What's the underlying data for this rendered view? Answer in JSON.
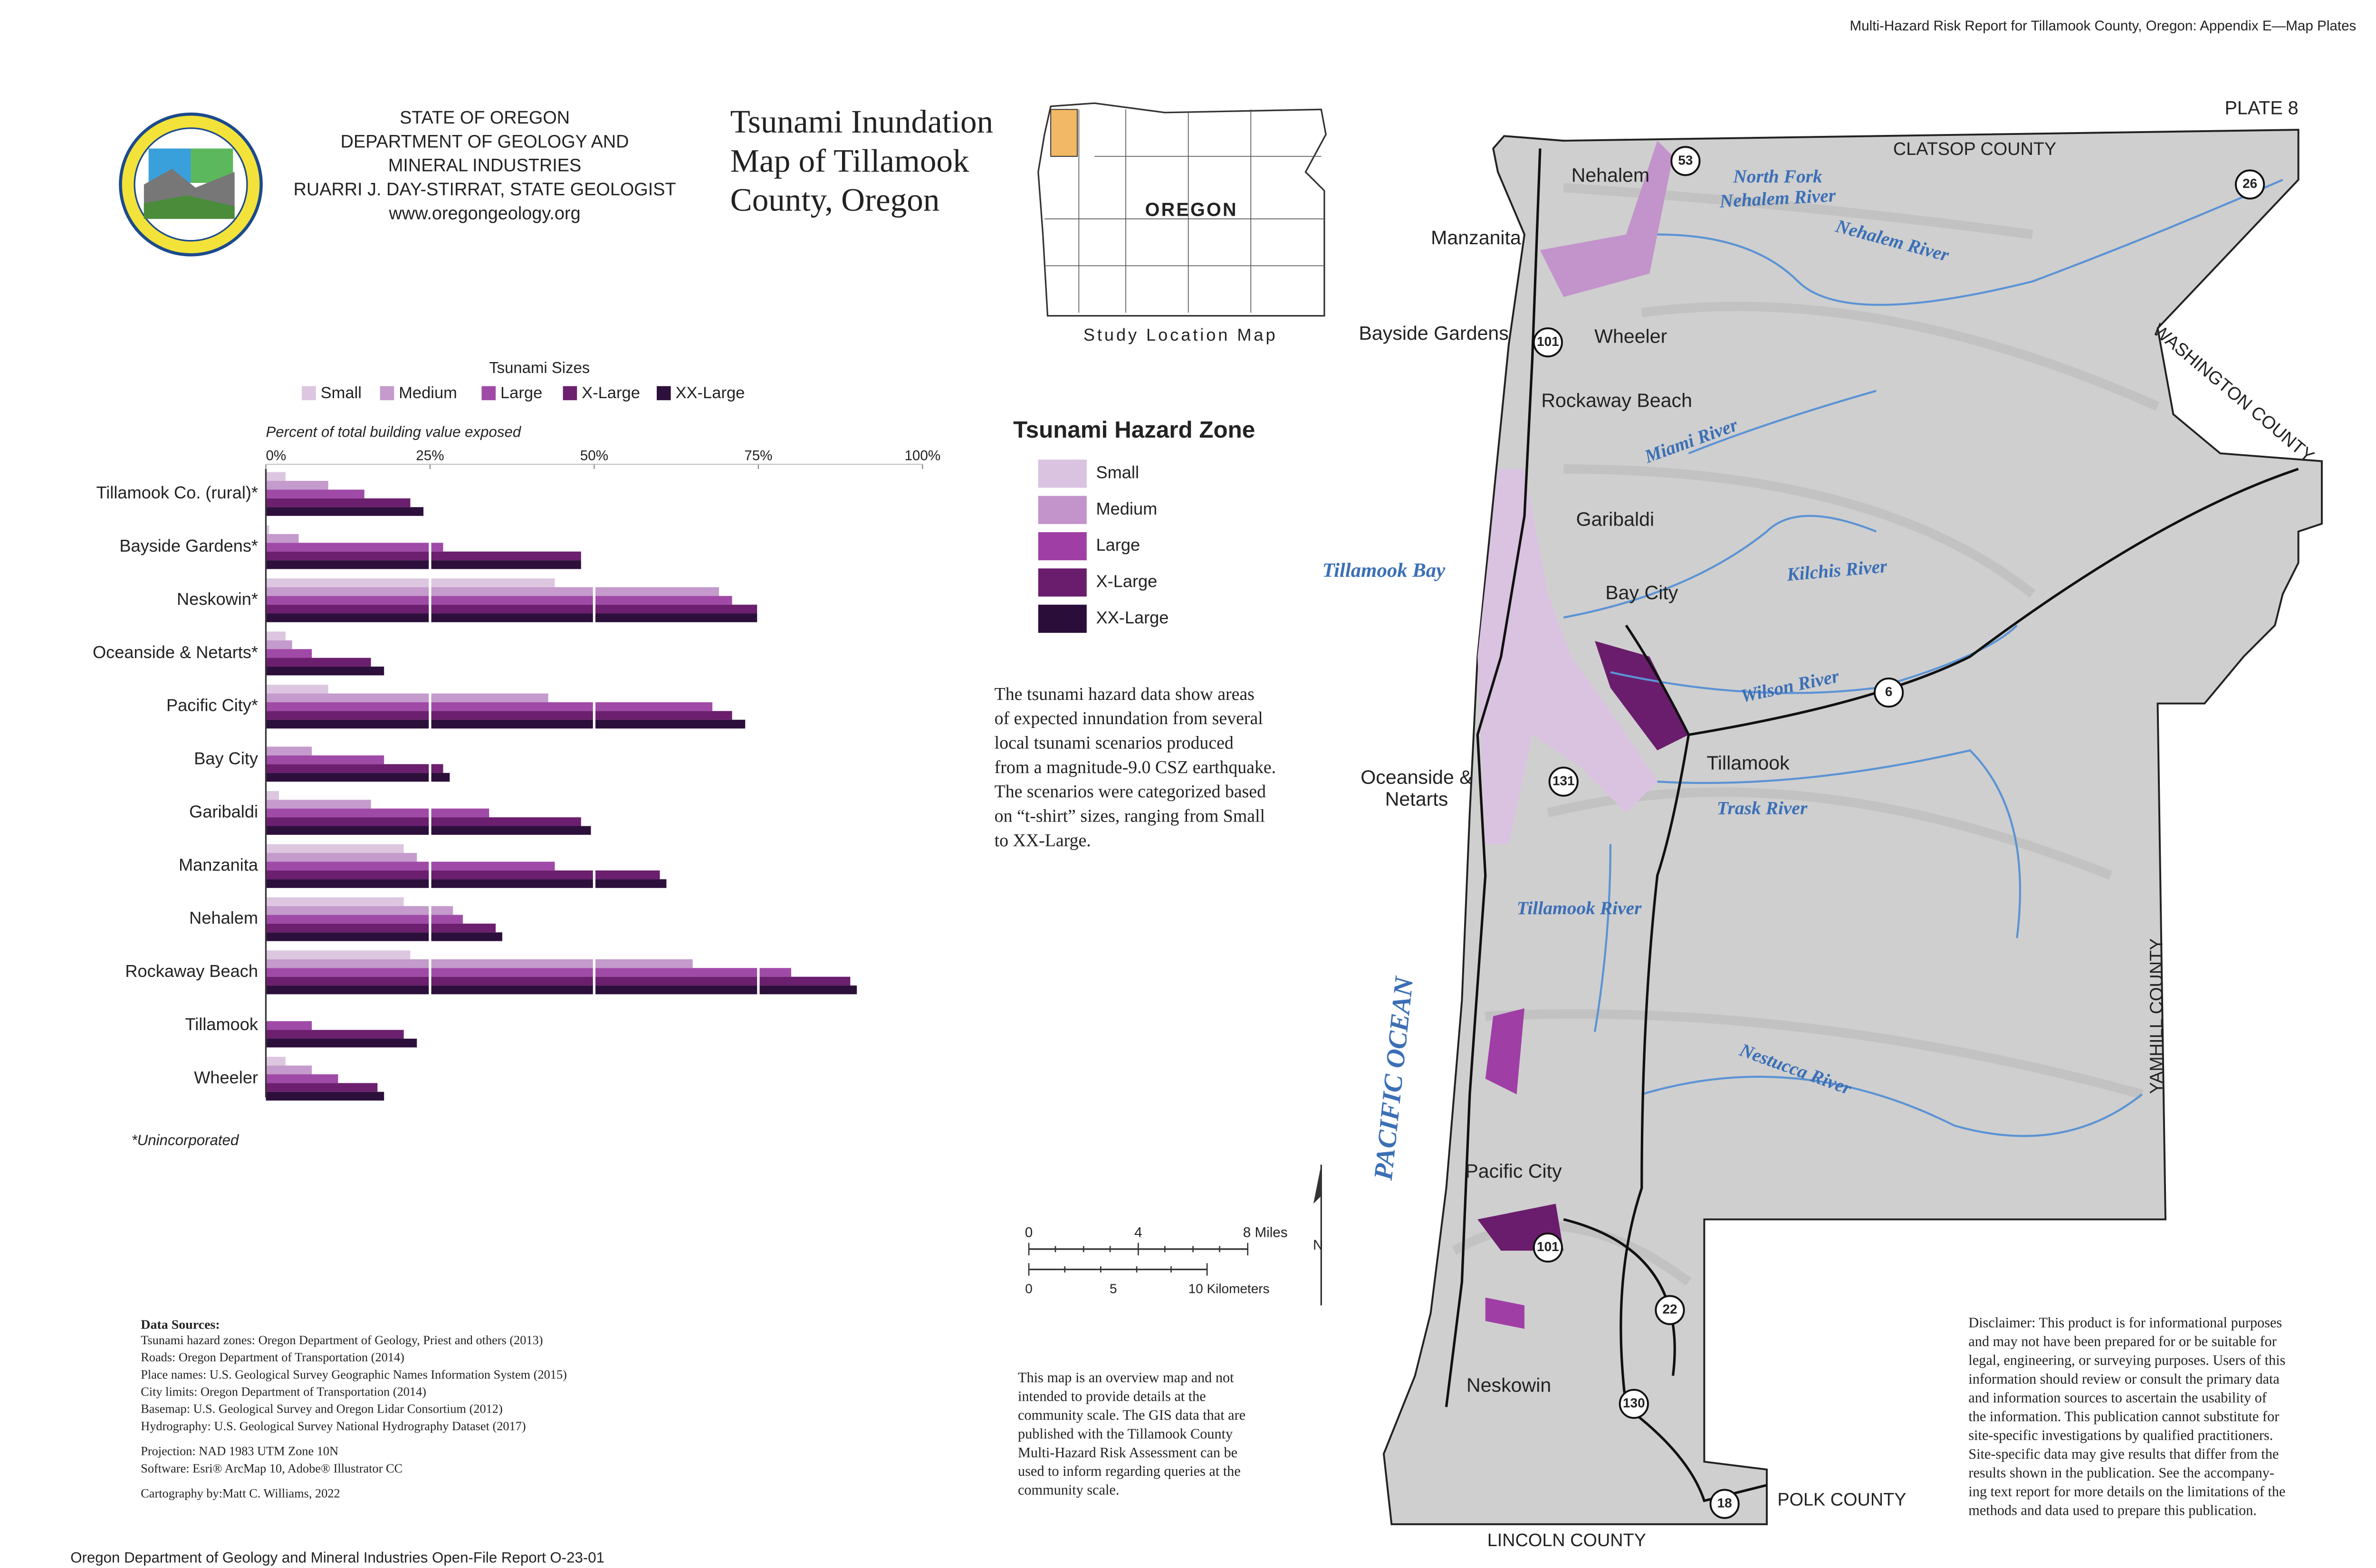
{
  "header": {
    "top_note": "Multi-Hazard Risk Report for Tillamook County, Oregon: Appendix E—Map Plates",
    "agency": [
      "STATE OF OREGON",
      "DEPARTMENT OF GEOLOGY AND",
      "MINERAL INDUSTRIES",
      "RUARRI J. DAY-STIRRAT, STATE GEOLOGIST",
      "www.oregongeology.org"
    ],
    "title": [
      "Tsunami Inundation",
      "Map of Tillamook",
      "County, Oregon"
    ],
    "plate": "PLATE 8"
  },
  "locator": {
    "label": "OREGON",
    "caption": "Study Location Map"
  },
  "chart_data": {
    "type": "bar",
    "orientation": "horizontal",
    "legend_title": "Tsunami Sizes",
    "x_label": "Percent of total building value exposed",
    "footnote": "*Unincorporated",
    "categories": [
      "Tillamook Co. (rural)*",
      "Bayside Gardens*",
      "Neskowin*",
      "Oceanside & Netarts*",
      "Pacific City*",
      "Bay City",
      "Garibaldi",
      "Manzanita",
      "Nehalem",
      "Rockaway Beach",
      "Tillamook",
      "Wheeler"
    ],
    "series": [
      {
        "name": "Small",
        "color": "#dcc6e0",
        "values": [
          3,
          0.5,
          44,
          3,
          9.5,
          0,
          2,
          21,
          21,
          22,
          0,
          3
        ]
      },
      {
        "name": "Medium",
        "color": "#c49bcc",
        "values": [
          9.5,
          5,
          69,
          4,
          43,
          7,
          16,
          23,
          28.5,
          65,
          0,
          7
        ]
      },
      {
        "name": "Large",
        "color": "#a04aa8",
        "values": [
          15,
          27,
          71,
          7,
          68,
          18,
          34,
          44,
          30,
          80,
          7,
          11
        ]
      },
      {
        "name": "X-Large",
        "color": "#6b1f6e",
        "values": [
          22,
          48,
          75,
          16,
          71,
          27,
          48,
          60,
          35,
          89,
          21,
          17
        ]
      },
      {
        "name": "XX-Large",
        "color": "#2d0f3c",
        "values": [
          24,
          48,
          75,
          18,
          73,
          28,
          49.5,
          61,
          36,
          90,
          23,
          18
        ]
      }
    ],
    "xlim": [
      0,
      100
    ],
    "xticks": [
      {
        "value": 0,
        "label": "0%"
      },
      {
        "value": 25,
        "label": "25%"
      },
      {
        "value": 50,
        "label": "50%"
      },
      {
        "value": 75,
        "label": "75%"
      },
      {
        "value": 100,
        "label": "100%"
      }
    ],
    "grid": true
  },
  "hazard_legend": {
    "title": "Tsunami Hazard Zone",
    "items": [
      {
        "name": "Small",
        "color": "#d9c3e0"
      },
      {
        "name": "Medium",
        "color": "#c393cc"
      },
      {
        "name": "Large",
        "color": "#9f3fa6"
      },
      {
        "name": "X-Large",
        "color": "#6a1d6c"
      },
      {
        "name": "XX-Large",
        "color": "#2a0d38"
      }
    ]
  },
  "description": [
    "The tsunami hazard data show areas",
    "of expected innundation from several",
    "local tsunami scenarios produced",
    "from a magnitude-9.0 CSZ earthquake.",
    "The scenarios were categorized based",
    "on “t-shirt” sizes, ranging from Small",
    "to XX-Large."
  ],
  "scale_bar": {
    "miles": [
      "0",
      "4",
      "8 Miles"
    ],
    "kilometers": [
      "0",
      "5",
      "10 Kilometers"
    ],
    "north": "N"
  },
  "data_sources": {
    "title": "Data Sources:",
    "lines": [
      "Tsunami hazard zones: Oregon Department of Geology, Priest and others (2013)",
      "Roads: Oregon Department of Transportation (2014)",
      "Place names: U.S. Geological Survey Geographic Names Information System (2015)",
      "City limits: Oregon Department of Transportation (2014)",
      "Basemap: U.S. Geological Survey and Oregon Lidar Consortium (2012)",
      "Hydrography: U.S. Geological Survey National Hydrography Dataset (2017)"
    ],
    "projection": [
      "Projection: NAD 1983 UTM Zone 10N",
      "Software: Esri® ArcMap 10, Adobe® Illustrator CC"
    ],
    "credit": "Cartography by:Matt C. Williams, 2022"
  },
  "overview_note": [
    "This map is an overview map and not",
    "intended to provide details at the",
    "community scale. The GIS data that are",
    "published with the Tillamook County",
    "Multi-Hazard Risk Assessment can be",
    "used to inform regarding queries at the",
    "community scale."
  ],
  "disclaimer": [
    "Disclaimer: This product is for informational purposes",
    "and may not have been prepared for or be suitable for",
    "legal, engineering, or surveying purposes. Users of this",
    "information should review or consult the primary data",
    "and information sources to ascertain the usability of",
    "the information. This publication cannot substitute for",
    "site-specific investigations by qualified practitioners.",
    "Site-specific data may give results that differ from the",
    "results shown in the publication. See the accompany-",
    "ing text report for more details on the limitations of the",
    "methods and data used to prepare this publication."
  ],
  "footer": "Oregon Department of Geology and Mineral Industries Open-File Report O-23-01",
  "map_labels": {
    "counties": [
      "CLATSOP COUNTY",
      "WASHINGTON COUNTY",
      "YAMHILL COUNTY",
      "POLK COUNTY",
      "LINCOLN COUNTY"
    ],
    "places": [
      "Nehalem",
      "Manzanita",
      "Bayside Gardens",
      "Wheeler",
      "Rockaway Beach",
      "Garibaldi",
      "Bay City",
      "Tillamook",
      "Oceanside &",
      "Netarts",
      "Pacific City",
      "Neskowin"
    ],
    "water": [
      "North Fork",
      "Nehalem River",
      "Nehalem River",
      "Miami River",
      "Tillamook Bay",
      "Kilchis River",
      "Wilson River",
      "Trask River",
      "Tillamook River",
      "Nestucca River",
      "PACIFIC OCEAN"
    ],
    "highways": [
      "53",
      "26",
      "101",
      "6",
      "131",
      "101",
      "22",
      "130",
      "18"
    ]
  }
}
